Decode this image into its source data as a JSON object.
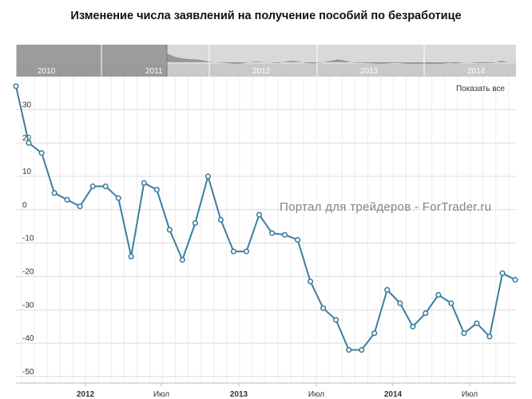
{
  "header": {
    "title": "Изменение числа заявлений на получение пособий по безработице"
  },
  "controls": {
    "show_all_label": "Показать все"
  },
  "watermark": {
    "text": "Портал для трейдеров - ForTrader.ru"
  },
  "navigator": {
    "year_labels": [
      "2010",
      "2011",
      "2012",
      "2013",
      "2014"
    ]
  },
  "chart_data": {
    "type": "line",
    "title": "Изменение числа заявлений на получение пособий по безработице",
    "xlabel": "",
    "ylabel": "",
    "ylim": [
      -50,
      37
    ],
    "y_ticks": [
      30,
      20,
      10,
      0,
      -10,
      -20,
      -30,
      -40,
      -50
    ],
    "x_tick_labels": [
      "2012",
      "Июл",
      "2013",
      "Июл",
      "2014",
      "Июл"
    ],
    "grid": true,
    "series_color": "#3b7ea1",
    "series": [
      {
        "values": [
          37,
          20,
          17,
          5,
          3,
          1,
          7,
          7,
          3.5,
          -14,
          8,
          6,
          -6,
          -15,
          -4,
          10,
          -3,
          -12.5,
          -12.5,
          -1.5,
          -7,
          -7.5,
          -9,
          -21.5,
          -29.5,
          -33,
          -42,
          -42,
          -37,
          -24,
          -28,
          -35,
          -31,
          -25.5,
          -28,
          -37,
          -34,
          -38,
          -19,
          -21
        ]
      }
    ]
  }
}
